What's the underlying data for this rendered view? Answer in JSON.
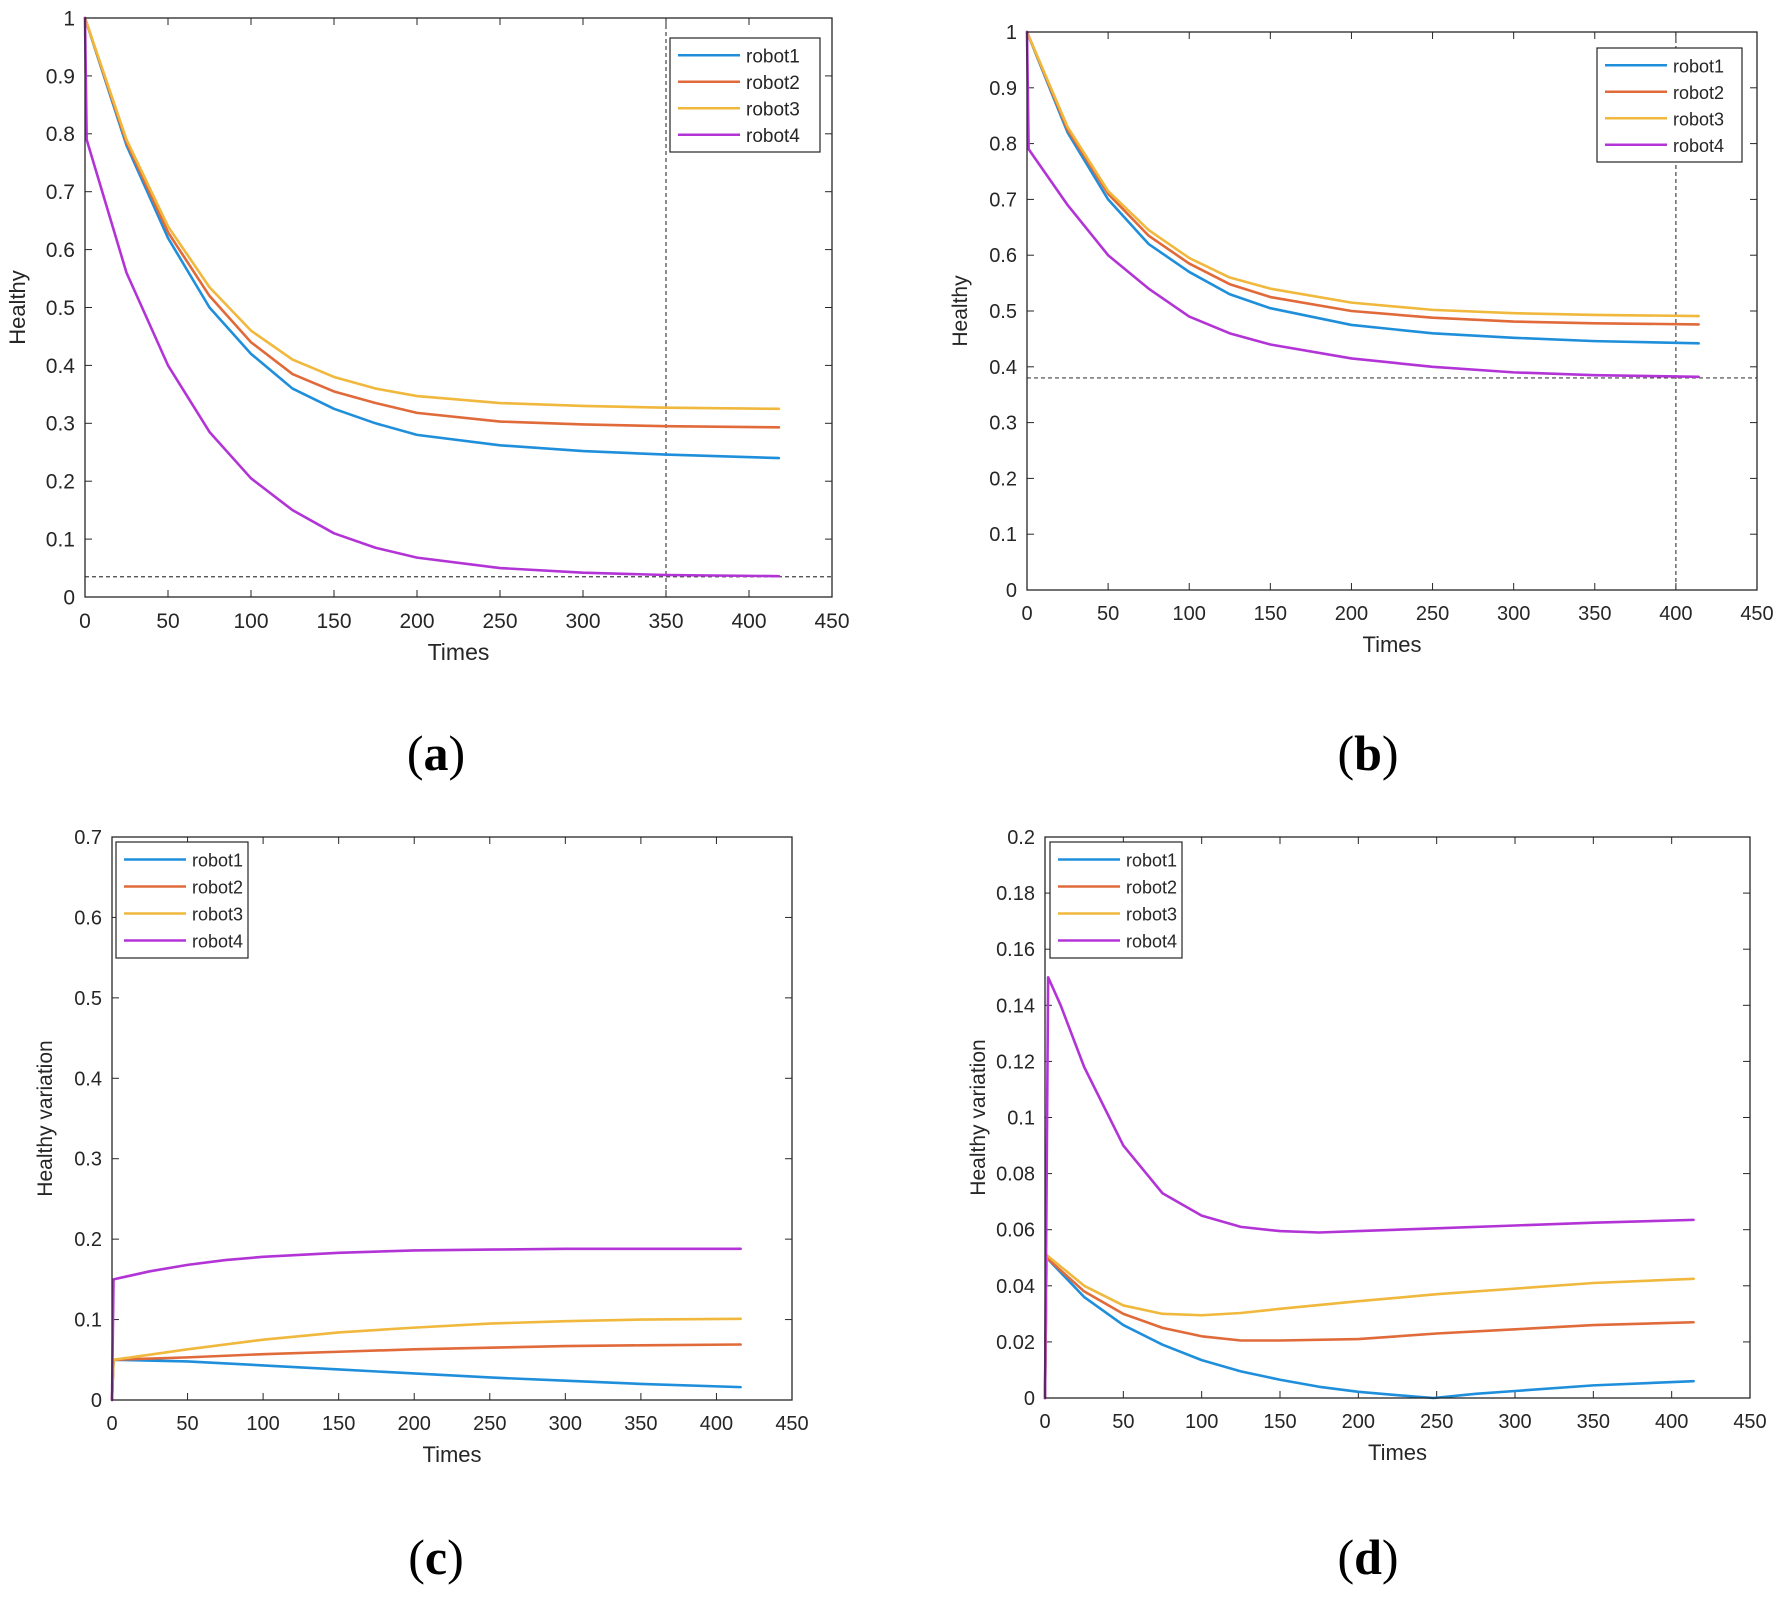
{
  "colors": {
    "robot1": "#1f8fdb",
    "robot2": "#e06a3a",
    "robot3": "#f0b83c",
    "robot4": "#b334d6",
    "axis": "#262626",
    "grid_ref": "#444444"
  },
  "chart_data": [
    {
      "id": "a",
      "panel_label": "a",
      "type": "line",
      "xlabel": "Times",
      "ylabel": "Healthy",
      "xlim": [
        0,
        450
      ],
      "ylim": [
        0,
        1
      ],
      "xticks": [
        0,
        50,
        100,
        150,
        200,
        250,
        300,
        350,
        400,
        450
      ],
      "yticks": [
        0,
        0.1,
        0.2,
        0.3,
        0.4,
        0.5,
        0.6,
        0.7,
        0.8,
        0.9,
        1
      ],
      "legend_position": "top-right",
      "reference_lines": {
        "vertical_x": 350,
        "horizontal_y": 0.035
      },
      "series": [
        {
          "name": "robot1",
          "color_key": "robot1",
          "x": [
            0,
            25,
            50,
            75,
            100,
            125,
            150,
            175,
            200,
            250,
            300,
            350,
            418
          ],
          "y": [
            1.0,
            0.78,
            0.62,
            0.5,
            0.42,
            0.36,
            0.325,
            0.3,
            0.28,
            0.262,
            0.252,
            0.246,
            0.24
          ]
        },
        {
          "name": "robot2",
          "color_key": "robot2",
          "x": [
            0,
            25,
            50,
            75,
            100,
            125,
            150,
            175,
            200,
            250,
            300,
            350,
            418
          ],
          "y": [
            1.0,
            0.785,
            0.63,
            0.52,
            0.44,
            0.385,
            0.355,
            0.335,
            0.318,
            0.303,
            0.298,
            0.295,
            0.293
          ]
        },
        {
          "name": "robot3",
          "color_key": "robot3",
          "x": [
            0,
            25,
            50,
            75,
            100,
            125,
            150,
            175,
            200,
            250,
            300,
            350,
            418
          ],
          "y": [
            1.0,
            0.79,
            0.64,
            0.535,
            0.46,
            0.41,
            0.38,
            0.36,
            0.347,
            0.335,
            0.33,
            0.327,
            0.325
          ]
        },
        {
          "name": "robot4",
          "color_key": "robot4",
          "x": [
            0,
            1,
            25,
            50,
            75,
            100,
            125,
            150,
            175,
            200,
            250,
            300,
            350,
            418
          ],
          "y": [
            1.0,
            0.79,
            0.56,
            0.4,
            0.285,
            0.205,
            0.15,
            0.11,
            0.085,
            0.068,
            0.05,
            0.042,
            0.038,
            0.036
          ]
        }
      ]
    },
    {
      "id": "b",
      "panel_label": "b",
      "type": "line",
      "xlabel": "Times",
      "ylabel": "Healthy",
      "xlim": [
        0,
        450
      ],
      "ylim": [
        0,
        1
      ],
      "xticks": [
        0,
        50,
        100,
        150,
        200,
        250,
        300,
        350,
        400,
        450
      ],
      "yticks": [
        0,
        0.1,
        0.2,
        0.3,
        0.4,
        0.5,
        0.6,
        0.7,
        0.8,
        0.9,
        1
      ],
      "legend_position": "top-right",
      "reference_lines": {
        "vertical_x": 400,
        "horizontal_y": 0.38
      },
      "series": [
        {
          "name": "robot1",
          "color_key": "robot1",
          "x": [
            0,
            25,
            50,
            75,
            100,
            125,
            150,
            200,
            250,
            300,
            350,
            414
          ],
          "y": [
            1.0,
            0.82,
            0.7,
            0.62,
            0.57,
            0.53,
            0.505,
            0.475,
            0.46,
            0.452,
            0.446,
            0.442
          ]
        },
        {
          "name": "robot2",
          "color_key": "robot2",
          "x": [
            0,
            25,
            50,
            75,
            100,
            125,
            150,
            200,
            250,
            300,
            350,
            414
          ],
          "y": [
            1.0,
            0.825,
            0.71,
            0.635,
            0.585,
            0.548,
            0.525,
            0.5,
            0.488,
            0.481,
            0.478,
            0.476
          ]
        },
        {
          "name": "robot3",
          "color_key": "robot3",
          "x": [
            0,
            25,
            50,
            75,
            100,
            125,
            150,
            200,
            250,
            300,
            350,
            414
          ],
          "y": [
            1.0,
            0.83,
            0.715,
            0.645,
            0.595,
            0.56,
            0.54,
            0.515,
            0.502,
            0.496,
            0.493,
            0.491
          ]
        },
        {
          "name": "robot4",
          "color_key": "robot4",
          "x": [
            0,
            1,
            25,
            50,
            75,
            100,
            125,
            150,
            200,
            250,
            300,
            350,
            414
          ],
          "y": [
            1.0,
            0.79,
            0.69,
            0.6,
            0.54,
            0.49,
            0.46,
            0.44,
            0.415,
            0.4,
            0.39,
            0.385,
            0.382
          ]
        }
      ]
    },
    {
      "id": "c",
      "panel_label": "c",
      "type": "line",
      "xlabel": "Times",
      "ylabel": "Healthy variation",
      "xlim": [
        0,
        450
      ],
      "ylim": [
        0,
        0.7
      ],
      "xticks": [
        0,
        50,
        100,
        150,
        200,
        250,
        300,
        350,
        400,
        450
      ],
      "yticks": [
        0,
        0.1,
        0.2,
        0.3,
        0.4,
        0.5,
        0.6,
        0.7
      ],
      "legend_position": "top-left",
      "series": [
        {
          "name": "robot1",
          "color_key": "robot1",
          "x": [
            0,
            1,
            50,
            100,
            150,
            200,
            250,
            300,
            350,
            416
          ],
          "y": [
            0,
            0.05,
            0.048,
            0.043,
            0.038,
            0.033,
            0.028,
            0.024,
            0.02,
            0.016
          ]
        },
        {
          "name": "robot2",
          "color_key": "robot2",
          "x": [
            0,
            1,
            50,
            100,
            150,
            200,
            250,
            300,
            350,
            416
          ],
          "y": [
            0,
            0.05,
            0.053,
            0.057,
            0.06,
            0.063,
            0.065,
            0.067,
            0.068,
            0.069
          ]
        },
        {
          "name": "robot3",
          "color_key": "robot3",
          "x": [
            0,
            1,
            50,
            100,
            150,
            200,
            250,
            300,
            350,
            416
          ],
          "y": [
            0,
            0.05,
            0.063,
            0.075,
            0.084,
            0.09,
            0.095,
            0.098,
            0.1,
            0.101
          ]
        },
        {
          "name": "robot4",
          "color_key": "robot4",
          "x": [
            0,
            1,
            25,
            50,
            75,
            100,
            150,
            200,
            250,
            300,
            350,
            416
          ],
          "y": [
            0,
            0.15,
            0.16,
            0.168,
            0.174,
            0.178,
            0.183,
            0.186,
            0.187,
            0.188,
            0.188,
            0.188
          ]
        }
      ]
    },
    {
      "id": "d",
      "panel_label": "d",
      "type": "line",
      "xlabel": "Times",
      "ylabel": "Healthy variation",
      "xlim": [
        0,
        450
      ],
      "ylim": [
        0,
        0.2
      ],
      "xticks": [
        0,
        50,
        100,
        150,
        200,
        250,
        300,
        350,
        400,
        450
      ],
      "yticks": [
        0,
        0.02,
        0.04,
        0.06,
        0.08,
        0.1,
        0.12,
        0.14,
        0.16,
        0.18,
        0.2
      ],
      "legend_position": "top-left",
      "series": [
        {
          "name": "robot1",
          "color_key": "robot1",
          "x": [
            0,
            1,
            25,
            50,
            75,
            100,
            125,
            150,
            175,
            200,
            225,
            248,
            275,
            300,
            350,
            414
          ],
          "y": [
            0,
            0.05,
            0.036,
            0.026,
            0.019,
            0.0135,
            0.0095,
            0.0065,
            0.004,
            0.0022,
            0.001,
            0,
            0.0015,
            0.0025,
            0.0045,
            0.006
          ]
        },
        {
          "name": "robot2",
          "color_key": "robot2",
          "x": [
            0,
            1,
            25,
            50,
            75,
            100,
            125,
            150,
            200,
            250,
            300,
            350,
            414
          ],
          "y": [
            0,
            0.05,
            0.038,
            0.03,
            0.025,
            0.022,
            0.0205,
            0.0205,
            0.021,
            0.023,
            0.0245,
            0.026,
            0.027
          ]
        },
        {
          "name": "robot3",
          "color_key": "robot3",
          "x": [
            0,
            1,
            25,
            50,
            75,
            100,
            125,
            150,
            200,
            250,
            300,
            350,
            414
          ],
          "y": [
            0,
            0.051,
            0.04,
            0.033,
            0.03,
            0.0295,
            0.0303,
            0.0318,
            0.0345,
            0.037,
            0.039,
            0.041,
            0.0425
          ]
        },
        {
          "name": "robot4",
          "color_key": "robot4",
          "x": [
            0,
            2,
            10,
            25,
            50,
            75,
            100,
            125,
            150,
            175,
            200,
            250,
            300,
            350,
            414
          ],
          "y": [
            0,
            0.15,
            0.14,
            0.118,
            0.09,
            0.073,
            0.065,
            0.061,
            0.0595,
            0.059,
            0.0595,
            0.0605,
            0.0615,
            0.0625,
            0.0635
          ]
        }
      ]
    }
  ]
}
